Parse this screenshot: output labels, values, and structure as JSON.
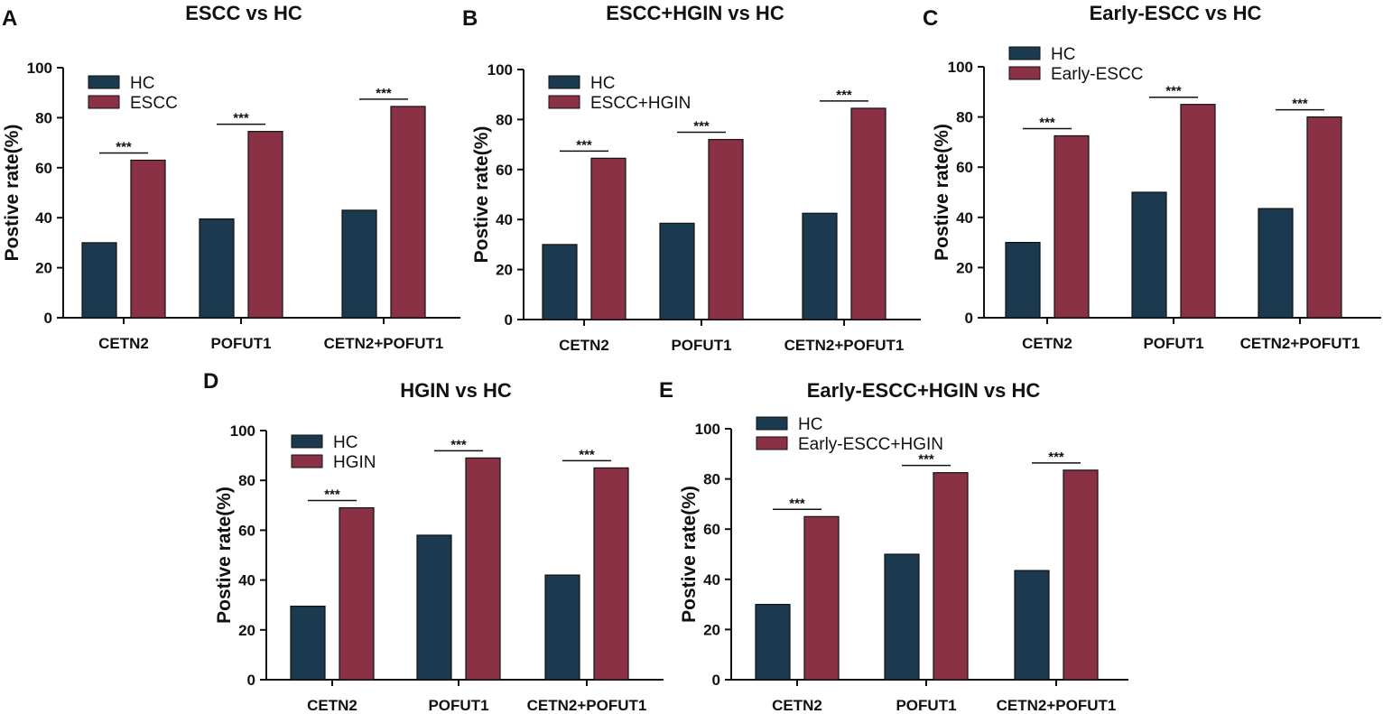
{
  "colors": {
    "hc": "#1b3a4f",
    "case": "#8b3145"
  },
  "chart_data": [
    {
      "type": "bar",
      "letter": "A",
      "title": "ESCC vs HC",
      "ylabel": "Postive rate(%)",
      "ylim": [
        0,
        100
      ],
      "yticks": [
        0,
        20,
        40,
        60,
        80,
        100
      ],
      "categories": [
        "CETN2",
        "POFUT1",
        "CETN2+POFUT1"
      ],
      "series": [
        {
          "name": "HC",
          "values": [
            30,
            39.5,
            43
          ]
        },
        {
          "name": "ESCC",
          "values": [
            63,
            74.5,
            84.5
          ]
        }
      ],
      "significance": [
        "***",
        "***",
        "***"
      ],
      "legend_position": "top-left"
    },
    {
      "type": "bar",
      "letter": "B",
      "title": "ESCC+HGIN vs HC",
      "ylabel": "Postive rate(%)",
      "ylim": [
        0,
        100
      ],
      "yticks": [
        0,
        20,
        40,
        60,
        80,
        100
      ],
      "categories": [
        "CETN2",
        "POFUT1",
        "CETN2+POFUT1"
      ],
      "series": [
        {
          "name": "HC",
          "values": [
            30,
            38.5,
            42.5
          ]
        },
        {
          "name": "ESCC+HGIN",
          "values": [
            64.5,
            72,
            84.5
          ]
        }
      ],
      "significance": [
        "***",
        "***",
        "***"
      ],
      "legend_position": "top-left"
    },
    {
      "type": "bar",
      "letter": "C",
      "title": "Early-ESCC vs HC",
      "ylabel": "Postive rate(%)",
      "ylim": [
        0,
        100
      ],
      "yticks": [
        0,
        20,
        40,
        60,
        80,
        100
      ],
      "categories": [
        "CETN2",
        "POFUT1",
        "CETN2+POFUT1"
      ],
      "series": [
        {
          "name": "HC",
          "values": [
            30,
            50,
            43.5
          ]
        },
        {
          "name": "Early-ESCC",
          "values": [
            72.5,
            85,
            80
          ]
        }
      ],
      "significance": [
        "***",
        "***",
        "***"
      ],
      "legend_position": "top-left"
    },
    {
      "type": "bar",
      "letter": "D",
      "title": "HGIN vs HC",
      "ylabel": "Postive rate(%)",
      "ylim": [
        0,
        100
      ],
      "yticks": [
        0,
        20,
        40,
        60,
        80,
        100
      ],
      "categories": [
        "CETN2",
        "POFUT1",
        "CETN2+POFUT1"
      ],
      "series": [
        {
          "name": "HC",
          "values": [
            29.5,
            58,
            42
          ]
        },
        {
          "name": "HGIN",
          "values": [
            69,
            89,
            85
          ]
        }
      ],
      "significance": [
        "***",
        "***",
        "***"
      ],
      "legend_position": "top-left"
    },
    {
      "type": "bar",
      "letter": "E",
      "title": "Early-ESCC+HGIN vs HC",
      "ylabel": "Postive rate(%)",
      "ylim": [
        0,
        100
      ],
      "yticks": [
        0,
        20,
        40,
        60,
        80,
        100
      ],
      "categories": [
        "CETN2",
        "POFUT1",
        "CETN2+POFUT1"
      ],
      "series": [
        {
          "name": "HC",
          "values": [
            30,
            50,
            43.5
          ]
        },
        {
          "name": "Early-ESCC+HGIN",
          "values": [
            65,
            82.5,
            83.5
          ]
        }
      ],
      "significance": [
        "***",
        "***",
        "***"
      ],
      "legend_position": "top-left"
    }
  ]
}
